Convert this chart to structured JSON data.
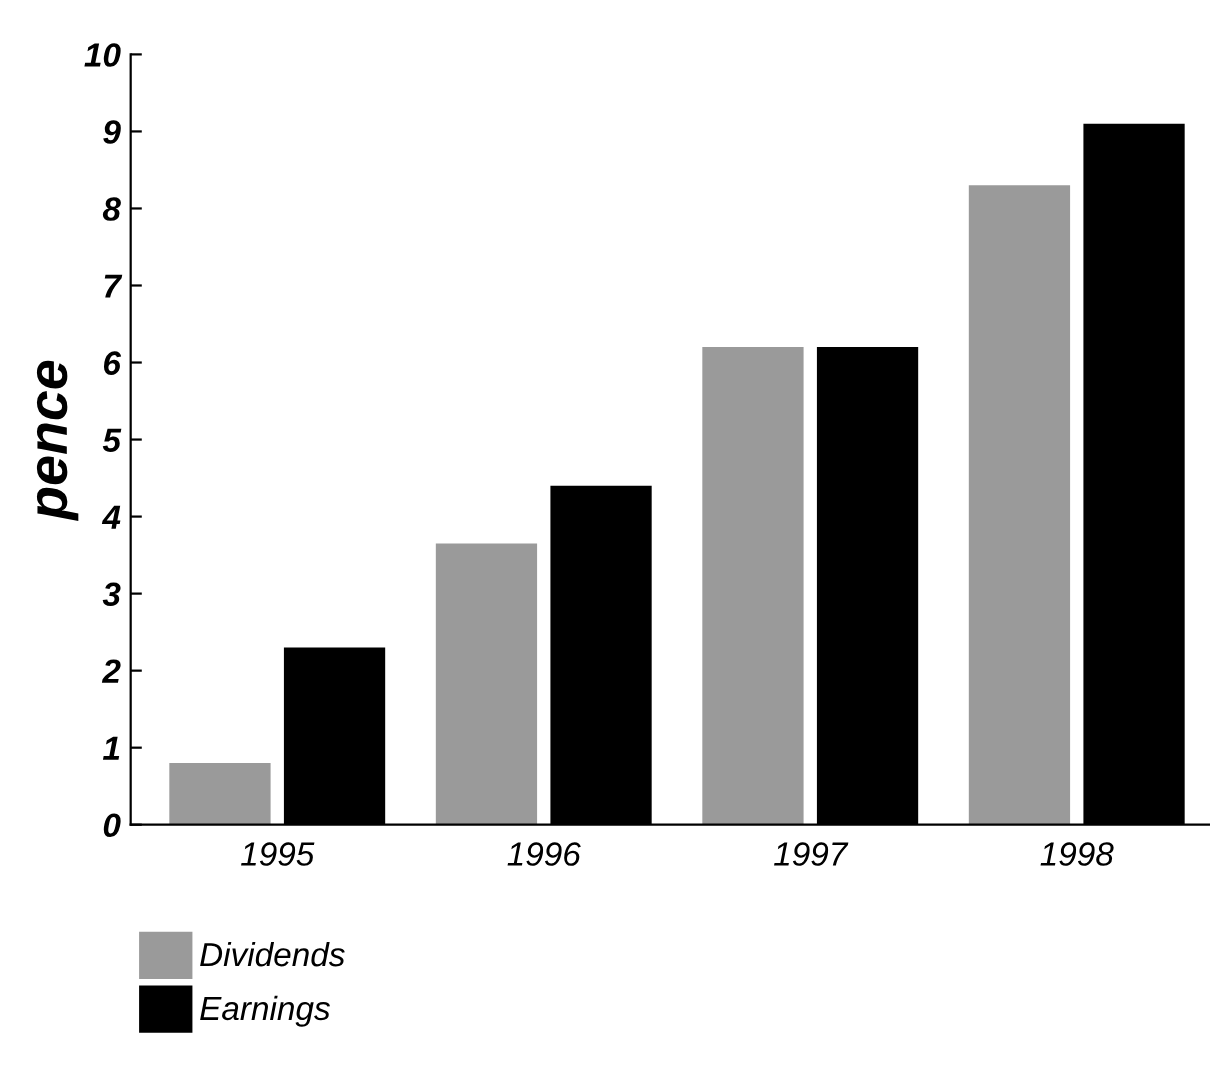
{
  "chart_data": {
    "type": "bar",
    "ylabel": "pence",
    "categories": [
      "1995",
      "1996",
      "1997",
      "1998"
    ],
    "series": [
      {
        "name": "Dividends",
        "color": "#9a9a9a",
        "values": [
          0.8,
          3.65,
          6.2,
          8.3
        ]
      },
      {
        "name": "Earnings",
        "color": "#000000",
        "values": [
          2.3,
          4.4,
          6.2,
          9.1
        ]
      }
    ],
    "ylim": [
      0,
      10
    ],
    "yticks": [
      0,
      1,
      2,
      3,
      4,
      5,
      6,
      7,
      8,
      9,
      10
    ],
    "grid": false,
    "legend": "bottom left"
  }
}
